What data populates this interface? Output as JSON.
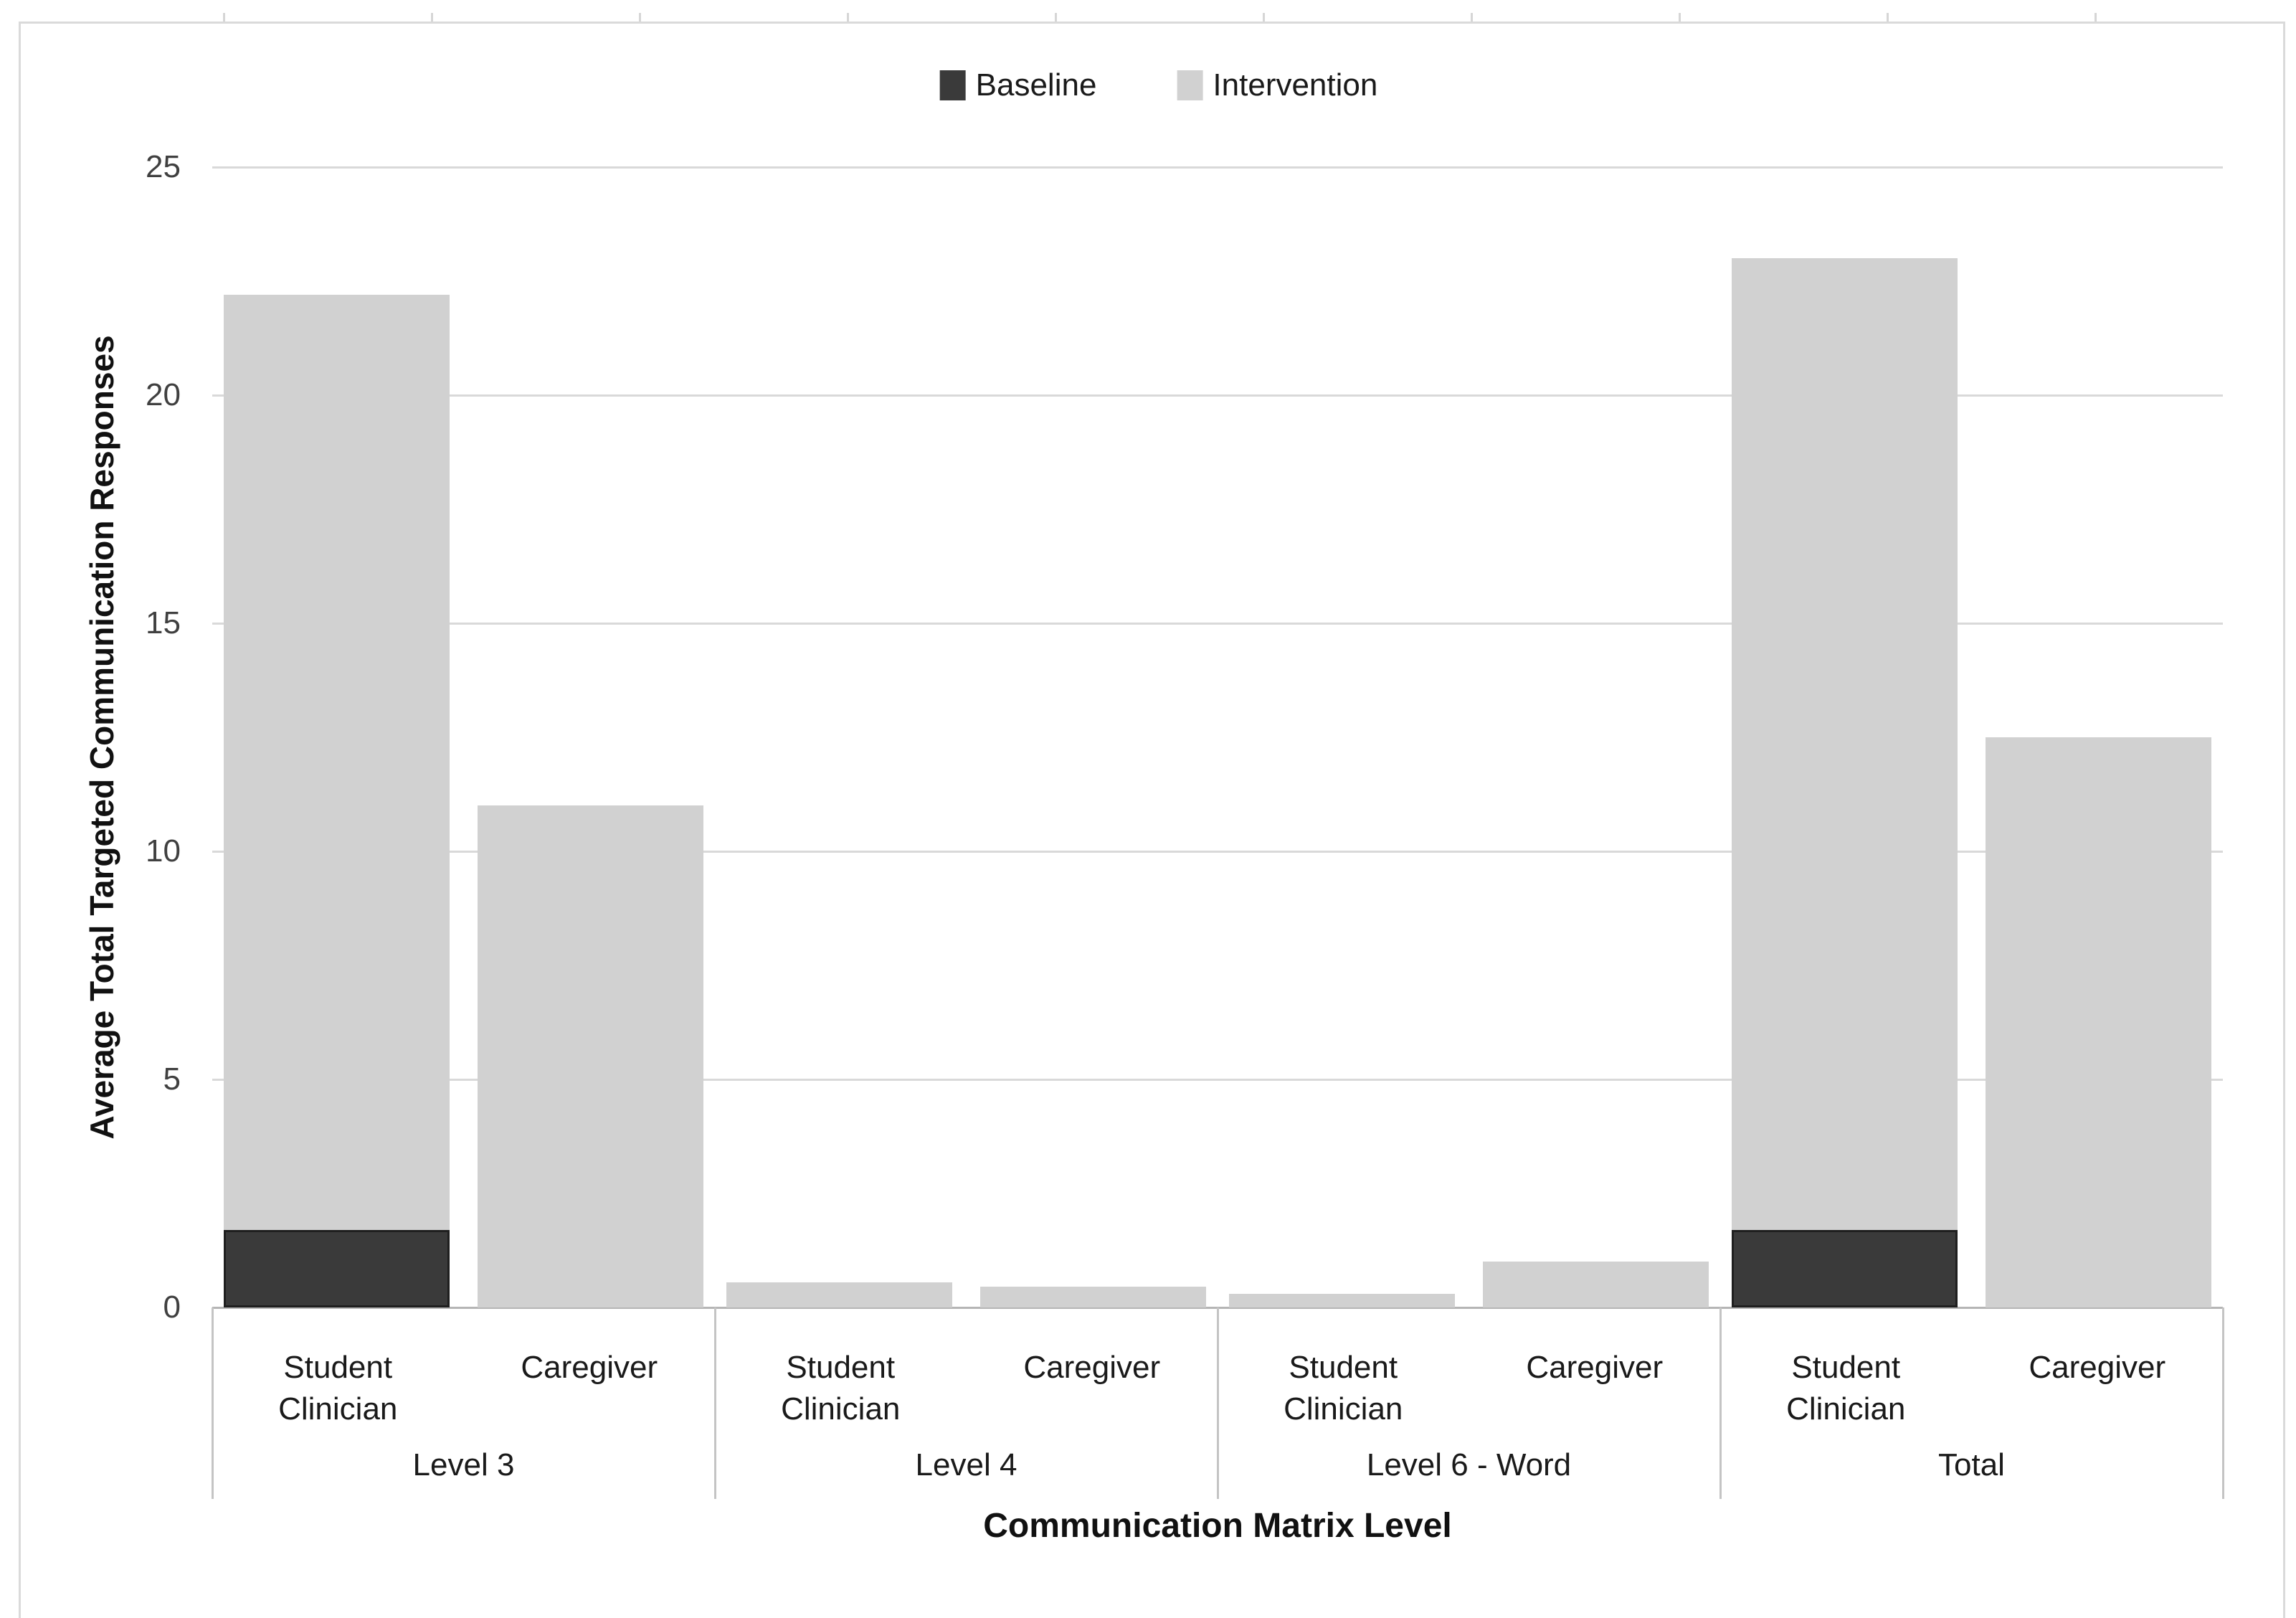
{
  "legend": {
    "items": [
      {
        "name": "baseline-swatch",
        "label": "Baseline",
        "color": "#3a3a3a"
      },
      {
        "name": "intervention-swatch",
        "label": "Intervention",
        "color": "#d1d1d1"
      }
    ]
  },
  "y_axis": {
    "title": "Average Total Targeted Communication Responses"
  },
  "x_axis": {
    "title": "Communication Matrix Level"
  },
  "chart_data": {
    "type": "bar",
    "stacked": true,
    "orientation": "vertical",
    "grid": "horizontal",
    "legend_position": "top-center",
    "ylabel": "Average Total Targeted Communication Responses",
    "xlabel": "Communication Matrix Level",
    "ylim": [
      0,
      25
    ],
    "yticks": [
      0,
      5,
      10,
      15,
      20,
      25
    ],
    "series_names": [
      "Baseline",
      "Intervention"
    ],
    "series_colors": {
      "Baseline": "#3a3a3a",
      "Intervention": "#d1d1d1"
    },
    "groups": [
      {
        "label": "Level 3",
        "bars": [
          {
            "label": "Student Clinician",
            "baseline": 1.7,
            "intervention": 20.5
          },
          {
            "label": "Caregiver",
            "baseline": 0,
            "intervention": 11
          }
        ]
      },
      {
        "label": "Level 4",
        "bars": [
          {
            "label": "Student Clinician",
            "baseline": 0,
            "intervention": 0.55
          },
          {
            "label": "Caregiver",
            "baseline": 0,
            "intervention": 0.45
          }
        ]
      },
      {
        "label": "Level 6 - Word",
        "bars": [
          {
            "label": "Student Clinician",
            "baseline": 0,
            "intervention": 0.3
          },
          {
            "label": "Caregiver",
            "baseline": 0,
            "intervention": 1
          }
        ]
      },
      {
        "label": "Total",
        "bars": [
          {
            "label": "Student Clinician",
            "baseline": 1.7,
            "intervention": 21.3
          },
          {
            "label": "Caregiver",
            "baseline": 0,
            "intervention": 12.5
          }
        ]
      }
    ]
  }
}
